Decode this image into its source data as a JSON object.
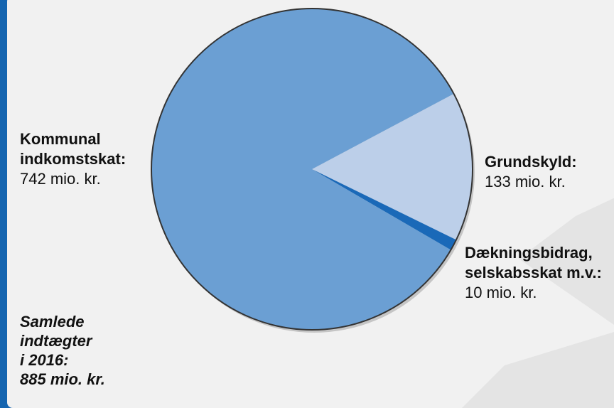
{
  "chart_data": {
    "type": "pie",
    "title": "",
    "slices": [
      {
        "name_lines": [
          "Kommunal",
          "indkomstskat:"
        ],
        "value_label": "742 mio. kr.",
        "value": 742,
        "color": "#6b9fd3"
      },
      {
        "name_lines": [
          "Grundskyld:"
        ],
        "value_label": "133 mio. kr.",
        "value": 133,
        "color": "#bccfe9"
      },
      {
        "name_lines": [
          "Dækningsbidrag,",
          "selskabsskat m.v.:"
        ],
        "value_label": "10 mio. kr.",
        "value": 10,
        "color": "#1a69b8"
      }
    ],
    "total_lines": [
      "Samlede",
      "indtægter",
      "i 2016:",
      "885 mio. kr."
    ]
  },
  "colors": {
    "frame_border": "#1565b0",
    "background": "#f1f1f1",
    "pie_outline": "#333333"
  }
}
